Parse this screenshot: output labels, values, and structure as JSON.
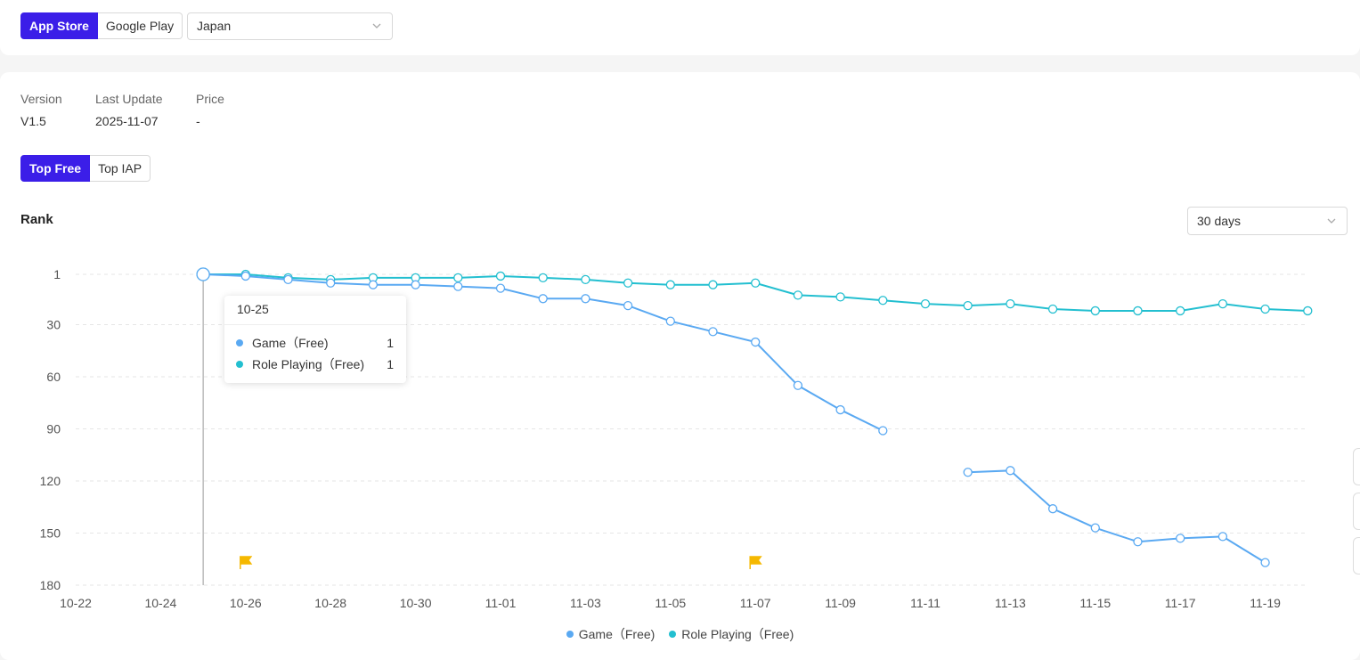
{
  "store_tabs": {
    "app_store": "App Store",
    "google_play": "Google Play"
  },
  "country_select": {
    "value": "Japan"
  },
  "meta": {
    "version_label": "Version",
    "version_value": "V1.5",
    "update_label": "Last Update",
    "update_value": "2025-11-07",
    "price_label": "Price",
    "price_value": "-"
  },
  "chart_tabs": {
    "top_free": "Top Free",
    "top_iap": "Top IAP"
  },
  "rank_title": "Rank",
  "range_select": {
    "value": "30 days"
  },
  "colors": {
    "accent": "#3b1ee8",
    "game": "#5aa9f2",
    "role_playing": "#23bfd0",
    "flag": "#f5b800"
  },
  "tooltip": {
    "date": "10-25",
    "rows": [
      {
        "name": "Game（Free)",
        "value": "1"
      },
      {
        "name": "Role Playing（Free)",
        "value": "1"
      }
    ]
  },
  "legend": {
    "game": "Game（Free)",
    "role_playing": "Role Playing（Free)"
  },
  "chart_data": {
    "type": "line",
    "ylabel": "Rank",
    "y_inverted": true,
    "ylim": [
      1,
      180
    ],
    "y_ticks": [
      "1",
      "30",
      "60",
      "90",
      "120",
      "150",
      "180"
    ],
    "x": [
      "10-22",
      "10-23",
      "10-24",
      "10-25",
      "10-26",
      "10-27",
      "10-28",
      "10-29",
      "10-30",
      "10-31",
      "11-01",
      "11-02",
      "11-03",
      "11-04",
      "11-05",
      "11-06",
      "11-07",
      "11-08",
      "11-09",
      "11-10",
      "11-11",
      "11-12",
      "11-13",
      "11-14",
      "11-15",
      "11-16",
      "11-17",
      "11-18",
      "11-19",
      "11-20"
    ],
    "x_tick_labels": [
      "10-22",
      "10-24",
      "10-26",
      "10-28",
      "10-30",
      "11-01",
      "11-03",
      "11-05",
      "11-07",
      "11-09",
      "11-11",
      "11-13",
      "11-15",
      "11-17",
      "11-19"
    ],
    "series": [
      {
        "name": "Game（Free)",
        "values": [
          null,
          null,
          null,
          1,
          2,
          4,
          6,
          7,
          7,
          8,
          9,
          15,
          15,
          19,
          28,
          34,
          40,
          65,
          79,
          91,
          null,
          115,
          114,
          136,
          147,
          155,
          153,
          152,
          167,
          null
        ]
      },
      {
        "name": "Role Playing（Free)",
        "values": [
          null,
          null,
          null,
          1,
          1,
          3,
          4,
          3,
          3,
          3,
          2,
          3,
          4,
          6,
          7,
          7,
          6,
          13,
          14,
          16,
          18,
          19,
          18,
          21,
          22,
          22,
          22,
          18,
          21,
          22
        ]
      }
    ],
    "markers": [
      {
        "type": "flag",
        "x": "10-26"
      },
      {
        "type": "flag",
        "x": "11-07"
      }
    ],
    "highlight_x": "10-25",
    "grid": true,
    "legend_position": "bottom-center"
  }
}
